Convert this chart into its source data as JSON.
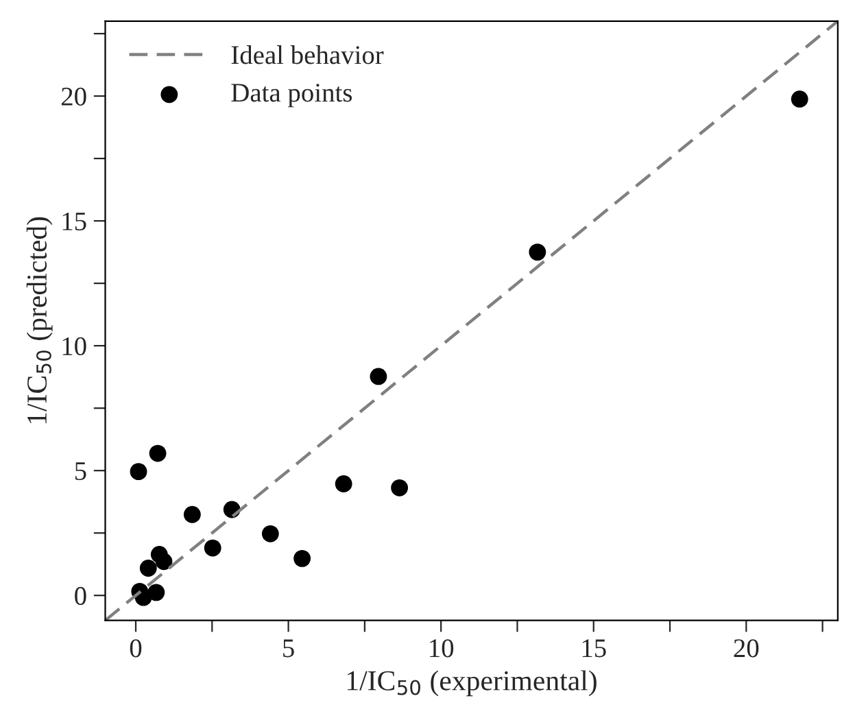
{
  "chart_data": {
    "type": "scatter",
    "xlabel": "1/IC$_{50}$ (experimental)",
    "ylabel": "1/IC$_{50}$ (predicted)",
    "xlim": [
      -1,
      23
    ],
    "ylim": [
      -1,
      23
    ],
    "xticks": [
      0,
      {
        "value": 2.5,
        "label": null
      },
      5,
      {
        "value": 7.5,
        "label": null
      },
      10,
      {
        "value": 12.5,
        "label": null
      },
      15,
      {
        "value": 17.5,
        "label": null
      },
      20,
      {
        "value": 22.5,
        "label": null
      }
    ],
    "yticks": [
      0,
      {
        "value": 2.5,
        "label": null
      },
      5,
      {
        "value": 7.5,
        "label": null
      },
      10,
      {
        "value": 12.5,
        "label": null
      },
      15,
      {
        "value": 17.5,
        "label": null
      },
      20,
      {
        "value": 22.5,
        "label": null
      }
    ],
    "grid": false,
    "legend": "top left",
    "series": [
      {
        "name": "Ideal behavior",
        "type": "line",
        "line_style": "dashed",
        "marker": "none",
        "color": "#808080",
        "x": [
          -1,
          23
        ],
        "values": [
          -1,
          23
        ]
      },
      {
        "name": "Data points",
        "marker": "circle",
        "color": "#000000",
        "x": [
          21.75,
          13.16,
          7.95,
          0.72,
          0.09,
          6.81,
          8.64,
          1.85,
          3.15,
          4.41,
          2.52,
          5.45,
          0.77,
          0.92,
          0.41,
          0.13,
          0.25,
          0.67
        ],
        "values": [
          19.88,
          13.75,
          8.77,
          5.69,
          4.96,
          4.47,
          4.31,
          3.24,
          3.44,
          2.47,
          1.9,
          1.48,
          1.64,
          1.36,
          1.09,
          0.16,
          -0.08,
          0.12
        ]
      }
    ]
  }
}
